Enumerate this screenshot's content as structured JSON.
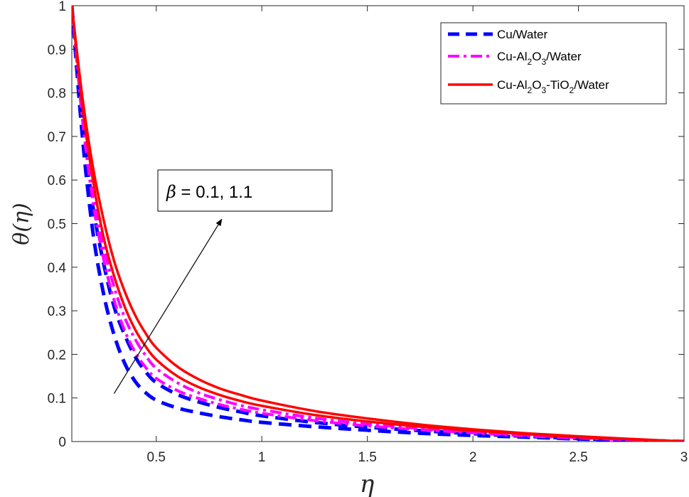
{
  "chart_data": {
    "type": "line",
    "xlabel": "η",
    "ylabel": "θ(η)",
    "xlim": [
      0.1,
      3
    ],
    "ylim": [
      0,
      1
    ],
    "x_ticks": [
      0.5,
      1,
      1.5,
      2,
      2.5,
      3
    ],
    "x_tick_labels": [
      "0.5",
      "1",
      "1.5",
      "2",
      "2.5",
      "3"
    ],
    "y_ticks": [
      0,
      0.1,
      0.2,
      0.3,
      0.4,
      0.5,
      0.6,
      0.7,
      0.8,
      0.9,
      1
    ],
    "y_tick_labels": [
      "0",
      "0.1",
      "0.2",
      "0.3",
      "0.4",
      "0.5",
      "0.6",
      "0.7",
      "0.8",
      "0.9",
      "1"
    ],
    "grid": false,
    "legend_position": "top-right",
    "legend": [
      {
        "base": "Cu/Water",
        "parts": [
          {
            "t": "Cu/Water"
          }
        ]
      },
      {
        "base": "Cu-Al2O3/Water",
        "parts": [
          {
            "t": "Cu-Al"
          },
          {
            "t": "2",
            "sub": true
          },
          {
            "t": "O"
          },
          {
            "t": "3",
            "sub": true
          },
          {
            "t": "/Water"
          }
        ]
      },
      {
        "base": "Cu-Al2O3-TiO2/Water",
        "parts": [
          {
            "t": "Cu-Al"
          },
          {
            "t": "2",
            "sub": true
          },
          {
            "t": "O"
          },
          {
            "t": "3",
            "sub": true
          },
          {
            "t": "-TiO"
          },
          {
            "t": "2",
            "sub": true
          },
          {
            "t": "/Water"
          }
        ]
      }
    ],
    "annotation": {
      "symbol": "β",
      "text": " = 0.1, 1.1"
    },
    "arrow": {
      "from": [
        0.3,
        0.11
      ],
      "to": [
        0.81,
        0.51
      ]
    },
    "colors": {
      "Cu/Water": "#0000ff",
      "Cu-Al2O3/Water": "#ff00ff",
      "Cu-Al2O3-TiO2/Water": "#ff0000"
    },
    "series": [
      {
        "name": "Cu/Water",
        "beta": 0.1,
        "style": "dashed",
        "color": "#0000ff",
        "x": [
          0.1,
          0.15,
          0.2,
          0.25,
          0.3,
          0.35,
          0.4,
          0.45,
          0.5,
          0.6,
          0.7,
          0.8,
          0.9,
          1.0,
          1.25,
          1.5,
          1.75,
          2.0,
          2.25,
          2.5,
          2.75,
          3.0
        ],
        "y": [
          1.0,
          0.7,
          0.48,
          0.34,
          0.245,
          0.18,
          0.138,
          0.112,
          0.095,
          0.077,
          0.066,
          0.057,
          0.05,
          0.044,
          0.034,
          0.026,
          0.019,
          0.014,
          0.01,
          0.006,
          0.003,
          0.0
        ]
      },
      {
        "name": "Cu/Water",
        "beta": 1.1,
        "style": "dashed",
        "color": "#0000ff",
        "x": [
          0.1,
          0.15,
          0.2,
          0.25,
          0.3,
          0.35,
          0.4,
          0.45,
          0.5,
          0.6,
          0.7,
          0.8,
          0.9,
          1.0,
          1.25,
          1.5,
          1.75,
          2.0,
          2.25,
          2.5,
          2.75,
          3.0
        ],
        "y": [
          1.0,
          0.73,
          0.54,
          0.41,
          0.31,
          0.245,
          0.195,
          0.16,
          0.135,
          0.108,
          0.091,
          0.078,
          0.068,
          0.059,
          0.044,
          0.033,
          0.025,
          0.018,
          0.012,
          0.007,
          0.003,
          0.0
        ]
      },
      {
        "name": "Cu-Al2O3/Water",
        "beta": 0.1,
        "style": "dashdot",
        "color": "#ff00ff",
        "x": [
          0.1,
          0.15,
          0.2,
          0.25,
          0.3,
          0.35,
          0.4,
          0.45,
          0.5,
          0.6,
          0.7,
          0.8,
          0.9,
          1.0,
          1.25,
          1.5,
          1.75,
          2.0,
          2.25,
          2.5,
          2.75,
          3.0
        ],
        "y": [
          1.0,
          0.74,
          0.55,
          0.42,
          0.325,
          0.255,
          0.205,
          0.17,
          0.145,
          0.117,
          0.099,
          0.085,
          0.074,
          0.065,
          0.048,
          0.036,
          0.027,
          0.02,
          0.013,
          0.008,
          0.004,
          0.0
        ]
      },
      {
        "name": "Cu-Al2O3/Water",
        "beta": 1.1,
        "style": "dashdot",
        "color": "#ff00ff",
        "x": [
          0.1,
          0.15,
          0.2,
          0.25,
          0.3,
          0.35,
          0.4,
          0.45,
          0.5,
          0.6,
          0.7,
          0.8,
          0.9,
          1.0,
          1.25,
          1.5,
          1.75,
          2.0,
          2.25,
          2.5,
          2.75,
          3.0
        ],
        "y": [
          1.0,
          0.76,
          0.58,
          0.45,
          0.355,
          0.285,
          0.235,
          0.197,
          0.168,
          0.135,
          0.112,
          0.096,
          0.083,
          0.073,
          0.054,
          0.04,
          0.03,
          0.022,
          0.015,
          0.009,
          0.004,
          0.0
        ]
      },
      {
        "name": "Cu-Al2O3-TiO2/Water",
        "beta": 0.1,
        "style": "solid",
        "color": "#ff0000",
        "x": [
          0.1,
          0.15,
          0.2,
          0.25,
          0.3,
          0.35,
          0.4,
          0.45,
          0.5,
          0.6,
          0.7,
          0.8,
          0.9,
          1.0,
          1.25,
          1.5,
          1.75,
          2.0,
          2.25,
          2.5,
          2.75,
          3.0
        ],
        "y": [
          1.0,
          0.77,
          0.6,
          0.47,
          0.38,
          0.31,
          0.257,
          0.218,
          0.188,
          0.15,
          0.125,
          0.107,
          0.093,
          0.082,
          0.061,
          0.046,
          0.034,
          0.025,
          0.017,
          0.01,
          0.005,
          0.0
        ]
      },
      {
        "name": "Cu-Al2O3-TiO2/Water",
        "beta": 1.1,
        "style": "solid",
        "color": "#ff0000",
        "x": [
          0.1,
          0.15,
          0.2,
          0.25,
          0.3,
          0.35,
          0.4,
          0.45,
          0.5,
          0.6,
          0.7,
          0.8,
          0.9,
          1.0,
          1.25,
          1.5,
          1.75,
          2.0,
          2.25,
          2.5,
          2.75,
          3.0
        ],
        "y": [
          1.0,
          0.79,
          0.63,
          0.51,
          0.415,
          0.345,
          0.29,
          0.248,
          0.215,
          0.172,
          0.143,
          0.122,
          0.107,
          0.094,
          0.07,
          0.053,
          0.039,
          0.028,
          0.019,
          0.012,
          0.006,
          0.0
        ]
      }
    ]
  }
}
